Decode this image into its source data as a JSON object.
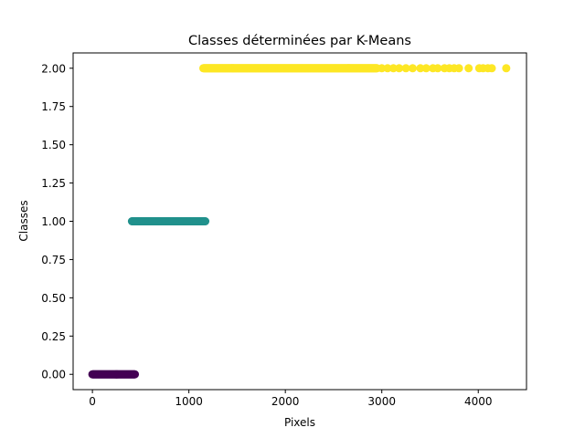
{
  "chart_data": {
    "type": "scatter",
    "title": "Classes déterminées par K-Means",
    "xlabel": "Pixels",
    "ylabel": "Classes",
    "xlim": [
      -200,
      4500
    ],
    "ylim": [
      -0.1,
      2.1
    ],
    "xticks": [
      0,
      1000,
      2000,
      3000,
      4000
    ],
    "xtick_labels": [
      "0",
      "1000",
      "2000",
      "3000",
      "4000"
    ],
    "yticks": [
      0,
      0.25,
      0.5,
      0.75,
      1,
      1.25,
      1.5,
      1.75,
      2
    ],
    "ytick_labels": [
      "0.00",
      "0.25",
      "0.50",
      "0.75",
      "1.00",
      "1.25",
      "1.50",
      "1.75",
      "2.00"
    ],
    "grid": false,
    "legend": "none",
    "series": [
      {
        "class": 0,
        "color": "#440154",
        "x_range": [
          0,
          440
        ],
        "y": 0,
        "x_extra": []
      },
      {
        "class": 1,
        "color": "#21918c",
        "x_range": [
          410,
          1170
        ],
        "y": 1,
        "x_extra": []
      },
      {
        "class": 2,
        "color": "#fde725",
        "x_range": [
          1150,
          2950
        ],
        "y": 2,
        "x_extra": [
          3000,
          3060,
          3120,
          3180,
          3250,
          3320,
          3400,
          3460,
          3530,
          3580,
          3650,
          3700,
          3750,
          3800,
          3900,
          4010,
          4050,
          4100,
          4140,
          4290
        ]
      }
    ]
  }
}
